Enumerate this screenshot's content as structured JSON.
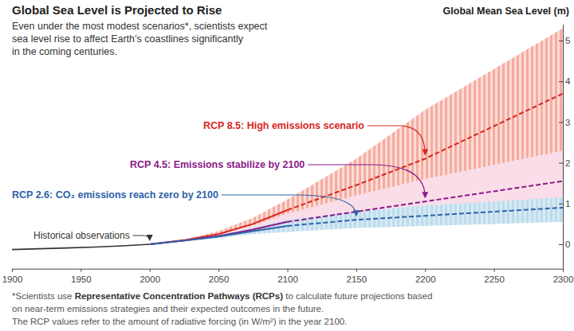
{
  "chart_data": {
    "type": "line",
    "title": "Global Sea Level is Projected to Rise",
    "subtitle": [
      "Even under the most modest scenarios*, scientists expect",
      "sea level rise to affect Earth’s coastlines significantly",
      "in the coming centuries."
    ],
    "ylabel": "Global Mean Sea Level (m)",
    "footnote": [
      [
        "*Scientists use ",
        "Representative Concentration Pathways (RCPs)",
        " to calculate future projections based"
      ],
      [
        "on near-term emissions strategies and their expected outcomes in the future."
      ],
      [
        "The RCP values refer to the amount of radiative forcing (in W/m²) in the year 2100."
      ]
    ],
    "x": [
      1900,
      1920,
      1940,
      1960,
      1980,
      2000,
      2025,
      2050,
      2075,
      2100,
      2150,
      2200,
      2250,
      2300
    ],
    "xlim": [
      1900,
      2300
    ],
    "xticks": [
      1900,
      1950,
      2000,
      2050,
      2100,
      2150,
      2200,
      2250,
      2300
    ],
    "ylim": [
      -0.6,
      5.4
    ],
    "yticks": [
      0,
      1,
      2,
      3,
      4,
      5
    ],
    "grid": false,
    "series": [
      {
        "name": "Historical observations",
        "color": "#333333",
        "line_style": "solid",
        "values": [
          -0.13,
          -0.11,
          -0.09,
          -0.07,
          -0.04,
          0,
          null,
          null,
          null,
          null,
          null,
          null,
          null,
          null
        ]
      },
      {
        "name": "RCP 8.5: High emissions scenario",
        "color": "#d7261e",
        "line_style": "solid",
        "values": [
          null,
          null,
          null,
          null,
          null,
          0,
          0.1,
          0.25,
          0.5,
          0.84,
          null,
          null,
          null,
          null
        ],
        "low": [
          null,
          null,
          null,
          null,
          null,
          0,
          0.08,
          0.2,
          0.38,
          0.6,
          0.9,
          1.3,
          1.8,
          2.3
        ],
        "high": [
          null,
          null,
          null,
          null,
          null,
          0,
          0.12,
          0.32,
          0.65,
          1.1,
          2.1,
          3.3,
          4.3,
          5.3
        ]
      },
      {
        "color": "#d7261e",
        "line_style": "dashed",
        "values": [
          null,
          null,
          null,
          null,
          null,
          null,
          null,
          null,
          null,
          0.84,
          1.45,
          2.1,
          2.9,
          3.7
        ]
      },
      {
        "name": "RCP 4.5: Emissions stabilize by 2100",
        "color": "#8b1a89",
        "line_style": "solid",
        "values": [
          null,
          null,
          null,
          null,
          null,
          0,
          0.09,
          0.2,
          0.36,
          0.55,
          null,
          null,
          null,
          null
        ],
        "low": [
          null,
          null,
          null,
          null,
          null,
          0,
          0.07,
          0.16,
          0.27,
          0.4,
          0.55,
          0.7,
          0.85,
          1.0
        ],
        "high": [
          null,
          null,
          null,
          null,
          null,
          0,
          0.11,
          0.25,
          0.46,
          0.75,
          1.2,
          1.6,
          1.95,
          2.3
        ]
      },
      {
        "color": "#8b1a89",
        "line_style": "dashed",
        "values": [
          null,
          null,
          null,
          null,
          null,
          null,
          null,
          null,
          null,
          0.55,
          0.8,
          1.05,
          1.3,
          1.55
        ]
      },
      {
        "name": "RCP 2.6: CO₂ emissions reach zero by 2100",
        "color": "#2f62a8",
        "line_style": "solid",
        "values": [
          null,
          null,
          null,
          null,
          null,
          0,
          0.09,
          0.19,
          0.32,
          0.45,
          null,
          null,
          null,
          null
        ],
        "low": [
          null,
          null,
          null,
          null,
          null,
          0,
          0.07,
          0.15,
          0.25,
          0.3,
          0.4,
          0.45,
          0.5,
          0.55
        ],
        "high": [
          null,
          null,
          null,
          null,
          null,
          0,
          0.11,
          0.23,
          0.4,
          0.6,
          0.8,
          0.95,
          1.05,
          1.15
        ]
      },
      {
        "color": "#2f62a8",
        "line_style": "dashed",
        "values": [
          null,
          null,
          null,
          null,
          null,
          null,
          null,
          null,
          null,
          0.45,
          0.6,
          0.7,
          0.8,
          0.9
        ]
      }
    ]
  }
}
